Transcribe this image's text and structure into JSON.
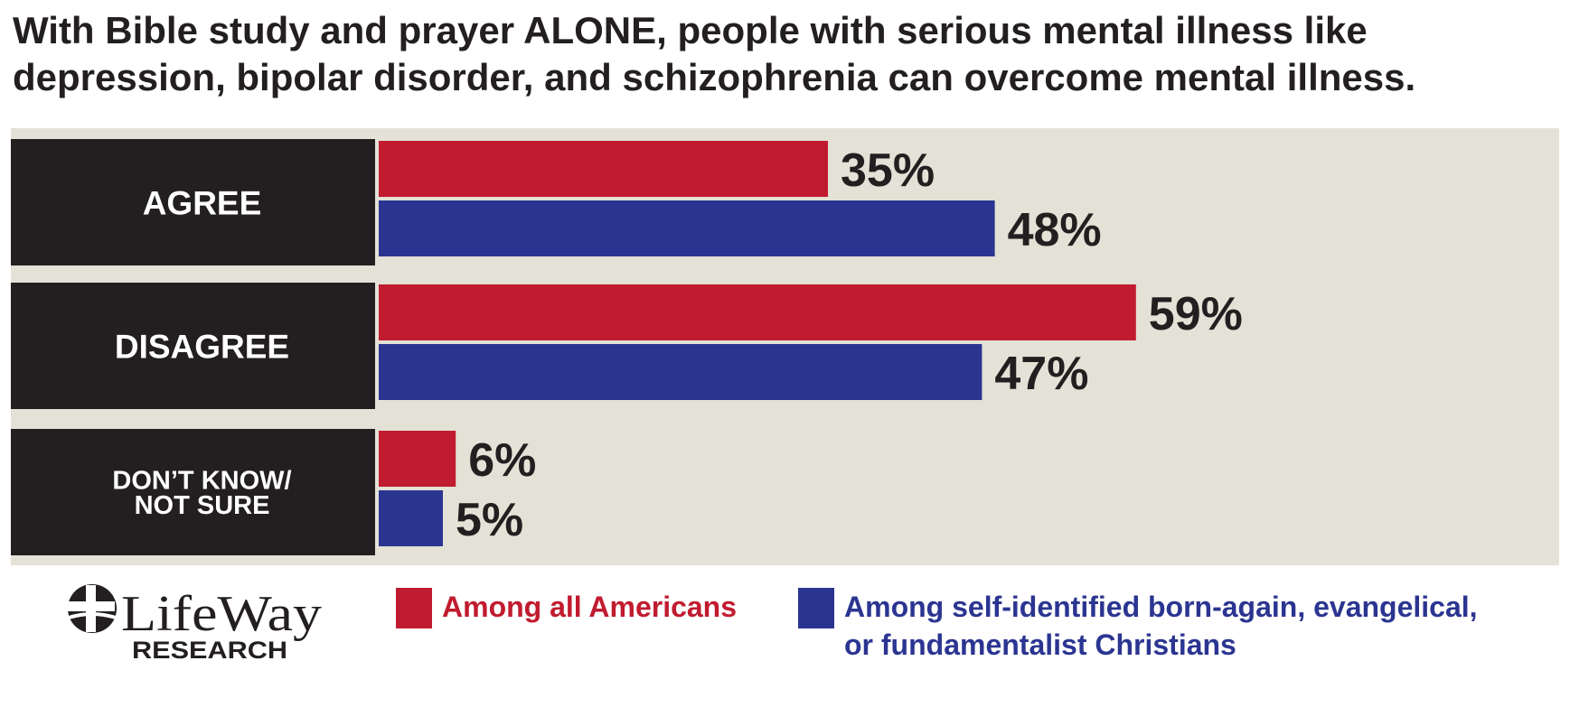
{
  "title": {
    "line1": "With Bible study and prayer ALONE, people with serious mental illness like",
    "line2": "depression, bipolar disorder, and schizophrenia can overcome mental illness."
  },
  "chart_data": {
    "type": "bar",
    "orientation": "horizontal",
    "categories": [
      {
        "lines": [
          "AGREE"
        ]
      },
      {
        "lines": [
          "DISAGREE"
        ]
      },
      {
        "lines": [
          "DON’T KNOW/",
          "NOT SURE"
        ]
      }
    ],
    "series": [
      {
        "name": "Among all Americans",
        "color": "#c11b2f",
        "values": [
          35,
          59,
          6
        ],
        "labels": [
          "35%",
          "59%",
          "6%"
        ]
      },
      {
        "name": "Among self-identified born-again, evangelical, or fundamentalist Christians",
        "color": "#2b3591",
        "values": [
          48,
          47,
          5
        ],
        "labels": [
          "48%",
          "47%",
          "5%"
        ]
      }
    ],
    "unit": "%",
    "background": "#e4e1d6",
    "label_box_color": "#231f20",
    "legend_position": "bottom"
  },
  "legend": {
    "all_americans": "Among all Americans",
    "christians_line1": "Among self-identified born-again, evangelical,",
    "christians_line2": "or fundamentalist Christians"
  },
  "logo": {
    "brand": "LifeWay",
    "sub": "RESEARCH"
  }
}
